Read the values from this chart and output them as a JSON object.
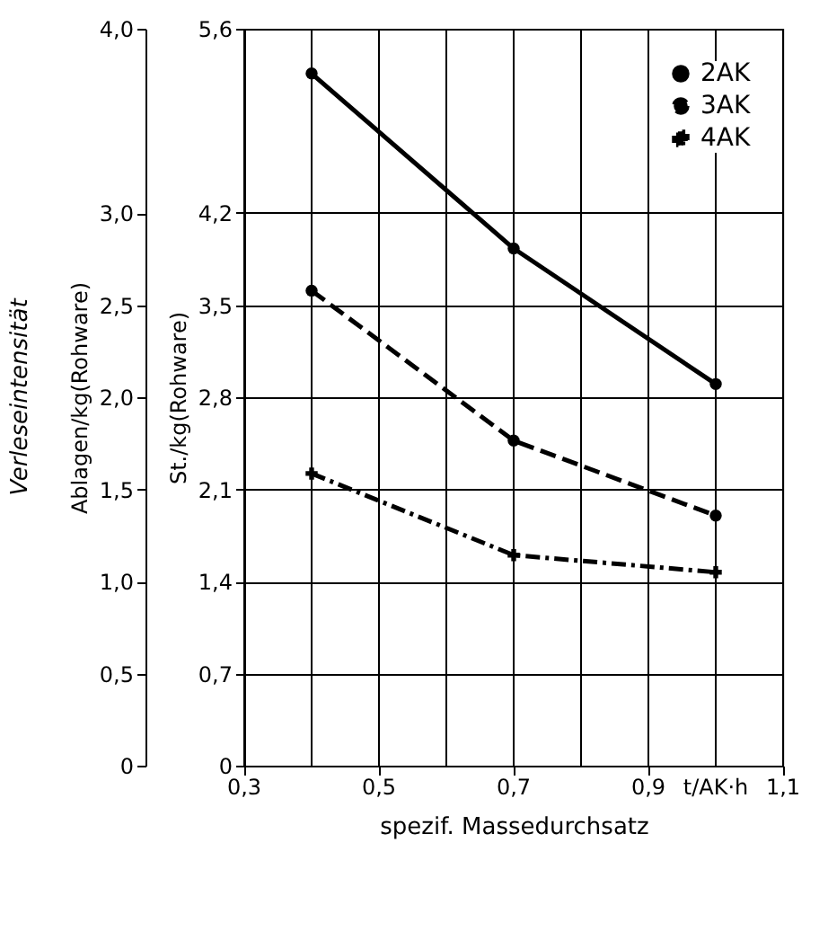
{
  "chart_data": {
    "type": "line",
    "xlabel": "spezif. Massedurchsatz",
    "ylabel": "St./kg(Rohware)",
    "y2label": "Ablagen/kg(Rohware)",
    "annotations": [
      "Verleseintensität"
    ],
    "x": [
      0.4,
      0.7,
      1.0
    ],
    "series": [
      {
        "name": "2AK",
        "color": "#000000",
        "values": [
          5.26,
          3.93,
          2.9
        ],
        "marker": "circle",
        "line_style": "solid"
      },
      {
        "name": "3AK",
        "color": "#000000",
        "values": [
          3.61,
          2.47,
          1.9
        ],
        "marker": "circle",
        "line_style": "dashed"
      },
      {
        "name": "4AK",
        "color": "#000000",
        "values": [
          2.22,
          1.6,
          1.47
        ],
        "marker": "cross",
        "line_style": "dotted"
      }
    ],
    "xlim": [
      0.3,
      1.1
    ],
    "xticks": [
      {
        "value": 0.3,
        "label": "0,3"
      },
      {
        "value": 0.4,
        "label": null
      },
      {
        "value": 0.5,
        "label": "0,5"
      },
      {
        "value": 0.6,
        "label": null
      },
      {
        "value": 0.7,
        "label": "0,7"
      },
      {
        "value": 0.8,
        "label": null
      },
      {
        "value": 0.9,
        "label": "0,9"
      },
      {
        "value": 1.0,
        "label": "t/AK·h"
      },
      {
        "value": 1.1,
        "label": "1,1"
      }
    ],
    "ylim": [
      0,
      5.6
    ],
    "yticks": [
      0,
      {
        "value": 0.7,
        "label": "0,7"
      },
      {
        "value": 1.4,
        "label": "1,4"
      },
      {
        "value": 2.1,
        "label": "2,1"
      },
      {
        "value": 2.8,
        "label": "2,8"
      },
      {
        "value": 3.5,
        "label": "3,5"
      },
      {
        "value": 4.2,
        "label": "4,2"
      },
      {
        "value": 5.6,
        "label": "5,6"
      }
    ],
    "y2lim": [
      0,
      4.0
    ],
    "y2ticks": [
      0,
      {
        "value": 0.5,
        "label": "0,5"
      },
      {
        "value": 1.0,
        "label": "1,0"
      },
      {
        "value": 1.5,
        "label": "1,5"
      },
      {
        "value": 2.0,
        "label": "2,0"
      },
      {
        "value": 2.5,
        "label": "2,5"
      },
      {
        "value": 3.0,
        "label": "3,0"
      },
      {
        "value": 4.0,
        "label": "4,0"
      }
    ],
    "grid": true,
    "legend": "top right"
  }
}
